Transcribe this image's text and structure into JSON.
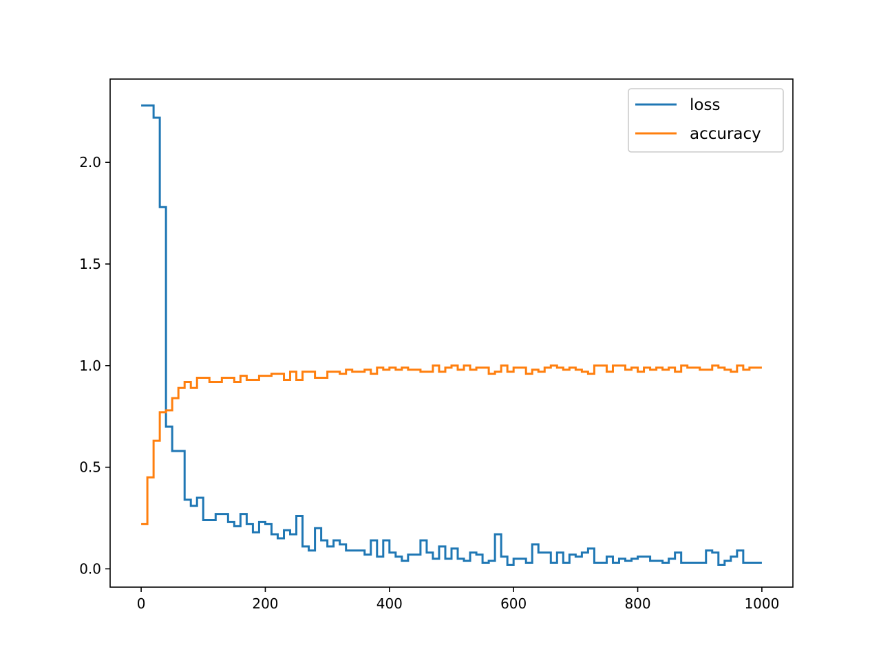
{
  "chart_data": {
    "type": "line",
    "xlim": [
      -50,
      1050
    ],
    "ylim": [
      -0.09,
      2.41
    ],
    "x_ticks": [
      0,
      200,
      400,
      600,
      800,
      1000
    ],
    "y_ticks": [
      0.0,
      0.5,
      1.0,
      1.5,
      2.0
    ],
    "x_tick_labels": [
      "0",
      "200",
      "400",
      "600",
      "800",
      "1000"
    ],
    "y_tick_labels": [
      "0.0",
      "0.5",
      "1.0",
      "1.5",
      "2.0"
    ],
    "grid": false,
    "legend_position": "upper-right",
    "x": [
      0,
      10,
      20,
      30,
      40,
      50,
      60,
      70,
      80,
      90,
      100,
      110,
      120,
      130,
      140,
      150,
      160,
      170,
      180,
      190,
      200,
      210,
      220,
      230,
      240,
      250,
      260,
      270,
      280,
      290,
      300,
      310,
      320,
      330,
      340,
      350,
      360,
      370,
      380,
      390,
      400,
      410,
      420,
      430,
      440,
      450,
      460,
      470,
      480,
      490,
      500,
      510,
      520,
      530,
      540,
      550,
      560,
      570,
      580,
      590,
      600,
      610,
      620,
      630,
      640,
      650,
      660,
      670,
      680,
      690,
      700,
      710,
      720,
      730,
      740,
      750,
      760,
      770,
      780,
      790,
      800,
      810,
      820,
      830,
      840,
      850,
      860,
      870,
      880,
      890,
      900,
      910,
      920,
      930,
      940,
      950,
      960,
      970,
      980,
      990,
      1000
    ],
    "series": [
      {
        "name": "loss",
        "color": "#1f77b4",
        "values": [
          2.28,
          2.28,
          2.22,
          1.78,
          0.7,
          0.58,
          0.58,
          0.34,
          0.31,
          0.35,
          0.24,
          0.24,
          0.27,
          0.27,
          0.23,
          0.21,
          0.27,
          0.22,
          0.18,
          0.23,
          0.22,
          0.17,
          0.15,
          0.19,
          0.17,
          0.26,
          0.11,
          0.09,
          0.2,
          0.14,
          0.11,
          0.14,
          0.12,
          0.09,
          0.09,
          0.09,
          0.07,
          0.14,
          0.06,
          0.14,
          0.08,
          0.06,
          0.04,
          0.07,
          0.07,
          0.14,
          0.08,
          0.05,
          0.11,
          0.05,
          0.1,
          0.05,
          0.04,
          0.08,
          0.07,
          0.03,
          0.04,
          0.17,
          0.06,
          0.02,
          0.05,
          0.05,
          0.03,
          0.12,
          0.08,
          0.08,
          0.03,
          0.08,
          0.03,
          0.07,
          0.06,
          0.08,
          0.1,
          0.03,
          0.03,
          0.06,
          0.03,
          0.05,
          0.04,
          0.05,
          0.06,
          0.06,
          0.04,
          0.04,
          0.03,
          0.05,
          0.08,
          0.03,
          0.03,
          0.03,
          0.03,
          0.09,
          0.08,
          0.02,
          0.04,
          0.06,
          0.09,
          0.03,
          0.03,
          0.03,
          0.03
        ]
      },
      {
        "name": "accuracy",
        "color": "#ff7f0e",
        "values": [
          0.22,
          0.45,
          0.63,
          0.77,
          0.78,
          0.84,
          0.89,
          0.92,
          0.89,
          0.94,
          0.94,
          0.92,
          0.92,
          0.94,
          0.94,
          0.92,
          0.95,
          0.93,
          0.93,
          0.95,
          0.95,
          0.96,
          0.96,
          0.93,
          0.97,
          0.93,
          0.97,
          0.97,
          0.94,
          0.94,
          0.97,
          0.97,
          0.96,
          0.98,
          0.97,
          0.97,
          0.98,
          0.96,
          0.99,
          0.98,
          0.99,
          0.98,
          0.99,
          0.98,
          0.98,
          0.97,
          0.97,
          1.0,
          0.97,
          0.99,
          1.0,
          0.98,
          1.0,
          0.98,
          0.99,
          0.99,
          0.96,
          0.97,
          1.0,
          0.97,
          0.99,
          0.99,
          0.96,
          0.98,
          0.97,
          0.99,
          1.0,
          0.99,
          0.98,
          0.99,
          0.98,
          0.97,
          0.96,
          1.0,
          1.0,
          0.97,
          1.0,
          1.0,
          0.98,
          0.99,
          0.97,
          0.99,
          0.98,
          0.99,
          0.98,
          0.99,
          0.97,
          1.0,
          0.99,
          0.99,
          0.98,
          0.98,
          1.0,
          0.99,
          0.98,
          0.97,
          1.0,
          0.98,
          0.99,
          0.99,
          0.99
        ]
      }
    ]
  }
}
